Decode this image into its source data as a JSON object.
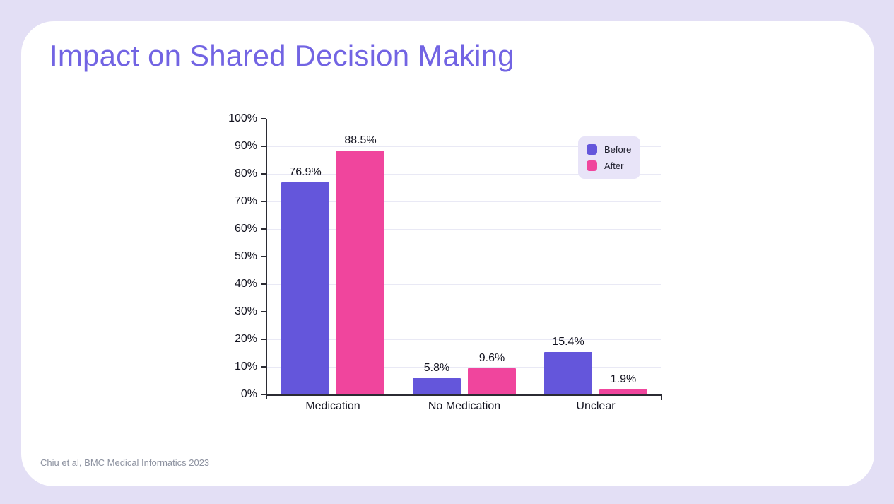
{
  "slide": {
    "title": "Impact on Shared Decision Making",
    "citation": "Chiu et al, BMC Medical Informatics 2023"
  },
  "colors": {
    "page_bg": "#E3DFF5",
    "card_bg": "#FFFFFF",
    "title_color": "#7264E3",
    "before": "#6456DB",
    "after": "#F0459D",
    "legend_bg": "#E8E4F8",
    "grid": "#E9E9F5",
    "axis": "#2B2B33",
    "label": "#141420",
    "citation": "#8D92A0"
  },
  "chart_data": {
    "type": "bar",
    "title": "",
    "xlabel": "",
    "ylabel": "",
    "categories": [
      "Medication",
      "No Medication",
      "Unclear"
    ],
    "series": [
      {
        "name": "Before",
        "color_key": "before",
        "values": [
          76.9,
          5.8,
          15.4
        ]
      },
      {
        "name": "After",
        "color_key": "after",
        "values": [
          88.5,
          9.6,
          1.9
        ]
      }
    ],
    "data_labels": [
      [
        "76.9%",
        "5.8%",
        "15.4%"
      ],
      [
        "88.5%",
        "9.6%",
        "1.9%"
      ]
    ],
    "y_ticks": [
      "0%",
      "10%",
      "20%",
      "30%",
      "40%",
      "50%",
      "60%",
      "70%",
      "80%",
      "90%",
      "100%"
    ],
    "ylim": [
      0,
      100
    ],
    "value_suffix": "%",
    "grid": "horizontal",
    "legend_position": "top-right-inside"
  }
}
